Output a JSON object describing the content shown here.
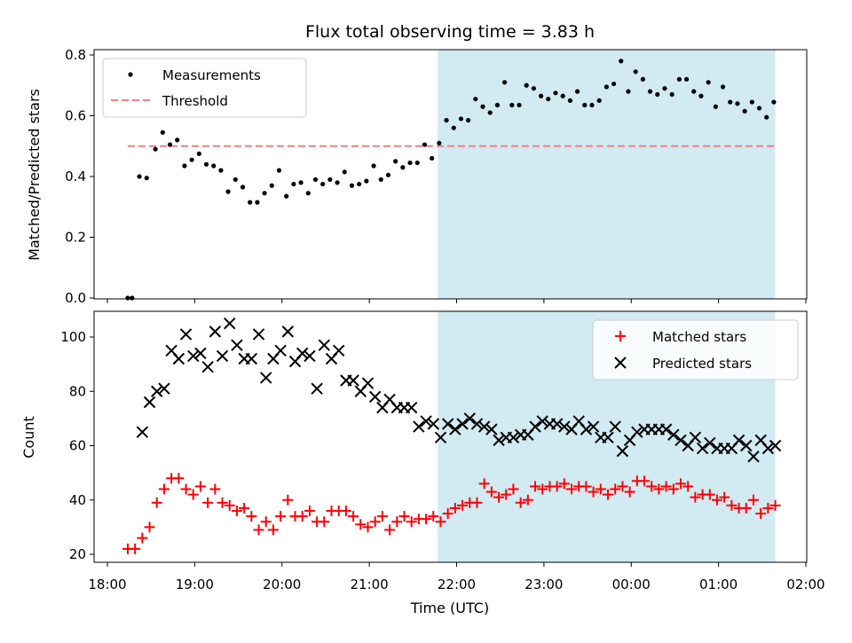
{
  "title": "Flux total observing time = 3.83 h",
  "colors": {
    "measurement": "#000000",
    "threshold": "#f08080",
    "matched": "#ff0000",
    "predicted": "#000000",
    "observing_span": "#add8e6"
  },
  "chart_data": [
    {
      "type": "scatter",
      "ylabel": "Matched/Predicted stars",
      "xlim": [
        "18:00",
        "02:00"
      ],
      "ylim": [
        0,
        0.8
      ],
      "yticks": [
        "0.0",
        "0.2",
        "0.4",
        "0.6",
        "0.8"
      ],
      "legend": {
        "placement": "top-left",
        "entries": [
          "Measurements",
          "Threshold"
        ]
      },
      "observing_span": [
        "21:47",
        "01:39"
      ],
      "threshold": {
        "y": 0.5,
        "x_range": [
          "18:14",
          "01:39"
        ]
      },
      "series": [
        {
          "name": "Measurements",
          "x": [
            "18:14",
            "18:17",
            "18:22",
            "18:27",
            "18:33",
            "18:38",
            "18:43",
            "18:48",
            "18:53",
            "18:58",
            "19:03",
            "19:08",
            "19:13",
            "19:18",
            "19:23",
            "19:28",
            "19:33",
            "19:38",
            "19:43",
            "19:48",
            "19:53",
            "19:58",
            "20:03",
            "20:08",
            "20:13",
            "20:18",
            "20:23",
            "20:28",
            "20:33",
            "20:38",
            "20:43",
            "20:48",
            "20:53",
            "20:58",
            "21:03",
            "21:08",
            "21:13",
            "21:18",
            "21:23",
            "21:28",
            "21:33",
            "21:38",
            "21:43",
            "21:48",
            "21:53",
            "21:58",
            "22:03",
            "22:08",
            "22:13",
            "22:18",
            "22:23",
            "22:28",
            "22:33",
            "22:38",
            "22:43",
            "22:48",
            "22:53",
            "22:58",
            "23:03",
            "23:08",
            "23:13",
            "23:18",
            "23:23",
            "23:28",
            "23:33",
            "23:38",
            "23:43",
            "23:48",
            "23:53",
            "23:58",
            "00:03",
            "00:08",
            "00:13",
            "00:18",
            "00:23",
            "00:28",
            "00:33",
            "00:38",
            "00:43",
            "00:48",
            "00:53",
            "00:58",
            "01:03",
            "01:08",
            "01:13",
            "01:18",
            "01:23",
            "01:28",
            "01:33",
            "01:38"
          ],
          "y": [
            0.0,
            0.0,
            0.4,
            0.395,
            0.49,
            0.545,
            0.505,
            0.52,
            0.435,
            0.455,
            0.475,
            0.44,
            0.435,
            0.42,
            0.35,
            0.39,
            0.365,
            0.315,
            0.315,
            0.345,
            0.37,
            0.42,
            0.335,
            0.375,
            0.38,
            0.345,
            0.39,
            0.375,
            0.39,
            0.38,
            0.415,
            0.37,
            0.375,
            0.385,
            0.435,
            0.39,
            0.405,
            0.45,
            0.43,
            0.445,
            0.445,
            0.505,
            0.46,
            0.51,
            0.585,
            0.56,
            0.59,
            0.585,
            0.655,
            0.63,
            0.61,
            0.635,
            0.71,
            0.635,
            0.635,
            0.7,
            0.69,
            0.665,
            0.655,
            0.675,
            0.665,
            0.65,
            0.68,
            0.635,
            0.635,
            0.65,
            0.695,
            0.705,
            0.78,
            0.68,
            0.745,
            0.72,
            0.68,
            0.67,
            0.69,
            0.67,
            0.72,
            0.72,
            0.68,
            0.665,
            0.71,
            0.63,
            0.695,
            0.645,
            0.64,
            0.615,
            0.645,
            0.625,
            0.595,
            0.645
          ]
        }
      ]
    },
    {
      "type": "scatter",
      "xlabel": "Time (UTC)",
      "ylabel": "Count",
      "xlim": [
        "18:00",
        "02:00"
      ],
      "ylim": [
        18,
        110
      ],
      "yticks": [
        "20",
        "40",
        "60",
        "80",
        "100"
      ],
      "xticks": [
        "18:00",
        "19:00",
        "20:00",
        "21:00",
        "22:00",
        "23:00",
        "00:00",
        "01:00",
        "02:00"
      ],
      "legend": {
        "placement": "top-right",
        "entries": [
          "Matched stars",
          "Predicted stars"
        ]
      },
      "observing_span": [
        "21:47",
        "01:39"
      ],
      "series": [
        {
          "name": "Matched stars",
          "x": [
            "18:14",
            "18:19",
            "18:24",
            "18:29",
            "18:34",
            "18:39",
            "18:44",
            "18:49",
            "18:54",
            "18:59",
            "19:04",
            "19:09",
            "19:14",
            "19:19",
            "19:24",
            "19:29",
            "19:34",
            "19:39",
            "19:44",
            "19:49",
            "19:54",
            "19:59",
            "20:04",
            "20:09",
            "20:14",
            "20:19",
            "20:24",
            "20:29",
            "20:34",
            "20:39",
            "20:44",
            "20:49",
            "20:54",
            "20:59",
            "21:04",
            "21:09",
            "21:14",
            "21:19",
            "21:24",
            "21:29",
            "21:34",
            "21:39",
            "21:44",
            "21:49",
            "21:54",
            "21:59",
            "22:04",
            "22:09",
            "22:14",
            "22:19",
            "22:24",
            "22:29",
            "22:34",
            "22:39",
            "22:44",
            "22:49",
            "22:54",
            "22:59",
            "23:04",
            "23:09",
            "23:14",
            "23:19",
            "23:24",
            "23:29",
            "23:34",
            "23:39",
            "23:44",
            "23:49",
            "23:54",
            "23:59",
            "00:04",
            "00:09",
            "00:14",
            "00:19",
            "00:24",
            "00:29",
            "00:34",
            "00:39",
            "00:44",
            "00:49",
            "00:54",
            "00:59",
            "01:04",
            "01:09",
            "01:14",
            "01:19",
            "01:24",
            "01:29",
            "01:34",
            "01:39"
          ],
          "y": [
            22,
            22,
            26,
            30,
            39,
            44,
            48,
            48,
            44,
            42,
            45,
            39,
            44,
            39,
            38,
            36,
            37,
            34,
            29,
            32,
            29,
            34,
            40,
            34,
            34,
            36,
            32,
            32,
            36,
            36,
            36,
            34,
            31,
            30,
            32,
            34,
            29,
            32,
            34,
            32,
            33,
            33,
            34,
            32,
            35,
            37,
            38,
            39,
            39,
            46,
            43,
            41,
            42,
            44,
            39,
            40,
            45,
            44,
            45,
            45,
            46,
            44,
            45,
            45,
            43,
            44,
            42,
            44,
            45,
            43,
            47,
            47,
            45,
            44,
            45,
            44,
            46,
            45,
            41,
            42,
            42,
            40,
            41,
            38,
            37,
            37,
            40,
            35,
            37,
            38
          ]
        },
        {
          "name": "Predicted stars",
          "x": [
            "18:24",
            "18:29",
            "18:34",
            "18:39",
            "18:44",
            "18:49",
            "18:54",
            "18:59",
            "19:04",
            "19:09",
            "19:14",
            "19:19",
            "19:24",
            "19:29",
            "19:34",
            "19:39",
            "19:44",
            "19:49",
            "19:54",
            "19:59",
            "20:04",
            "20:09",
            "20:14",
            "20:19",
            "20:24",
            "20:29",
            "20:34",
            "20:39",
            "20:44",
            "20:49",
            "20:54",
            "20:59",
            "21:04",
            "21:09",
            "21:14",
            "21:19",
            "21:24",
            "21:29",
            "21:34",
            "21:39",
            "21:44",
            "21:49",
            "21:54",
            "21:59",
            "22:04",
            "22:09",
            "22:14",
            "22:19",
            "22:24",
            "22:29",
            "22:34",
            "22:39",
            "22:44",
            "22:49",
            "22:54",
            "22:59",
            "23:04",
            "23:09",
            "23:14",
            "23:19",
            "23:24",
            "23:29",
            "23:34",
            "23:39",
            "23:44",
            "23:49",
            "23:54",
            "23:59",
            "00:04",
            "00:09",
            "00:14",
            "00:19",
            "00:24",
            "00:29",
            "00:34",
            "00:39",
            "00:44",
            "00:49",
            "00:54",
            "00:59",
            "01:04",
            "01:09",
            "01:14",
            "01:19",
            "01:24",
            "01:29",
            "01:34",
            "01:39"
          ],
          "y": [
            65,
            76,
            80,
            81,
            95,
            92,
            101,
            93,
            94,
            89,
            102,
            93,
            105,
            97,
            92,
            92,
            101,
            85,
            92,
            95,
            102,
            91,
            94,
            93,
            81,
            97,
            92,
            95,
            84,
            84,
            80,
            83,
            78,
            74,
            77,
            74,
            74,
            74,
            67,
            69,
            68,
            63,
            68,
            66,
            68,
            70,
            68,
            67,
            66,
            62,
            63,
            63,
            64,
            64,
            67,
            69,
            68,
            68,
            67,
            66,
            69,
            66,
            67,
            63,
            63,
            67,
            58,
            62,
            65,
            66,
            66,
            66,
            66,
            64,
            62,
            60,
            63,
            59,
            61,
            59,
            59,
            59,
            62,
            60,
            56,
            62,
            59,
            60
          ]
        }
      ]
    }
  ]
}
